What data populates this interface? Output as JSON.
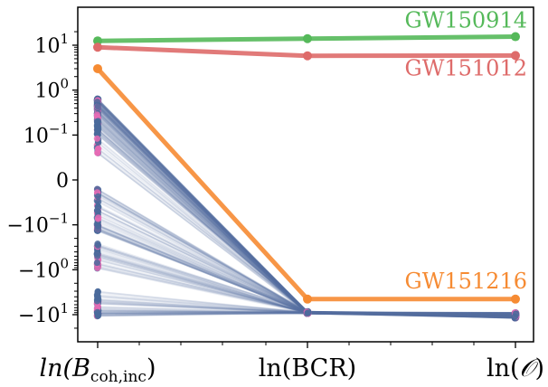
{
  "chart_data": {
    "type": "line",
    "x_categories": [
      "ln(B",
      "ln(BCR)",
      "ln("
    ],
    "x_label_parts": {
      "b_base": "ln(B",
      "b_sub": "coh,inc",
      "b_close": ")",
      "bcr": "ln(BCR)",
      "o_open": "ln(",
      "o_symbol": "𝒪",
      "o_close": ")"
    },
    "y_scale": "symlog",
    "y_ticks": [
      {
        "value": 10,
        "base": "10",
        "exp": "1"
      },
      {
        "value": 1,
        "base": "10",
        "exp": "0"
      },
      {
        "value": 0.1,
        "base": "10",
        "exp": "−1"
      },
      {
        "value": 0,
        "base": "0",
        "exp": ""
      },
      {
        "value": -0.1,
        "base": "−10",
        "exp": "−1"
      },
      {
        "value": -1,
        "base": "−10",
        "exp": "0"
      },
      {
        "value": -10,
        "base": "−10",
        "exp": "1"
      }
    ],
    "ylim": [
      -20,
      30
    ],
    "grid": false,
    "highlighted_series": [
      {
        "name": "GW150914",
        "color": "#55b95a",
        "values": [
          12.5,
          14.0,
          15.5
        ]
      },
      {
        "name": "GW151012",
        "color": "#de6b6a",
        "values": [
          9.0,
          5.8,
          5.9
        ]
      },
      {
        "name": "GW151216",
        "color": "#f68b33",
        "values": [
          3.0,
          -4.5,
          -4.5
        ]
      }
    ],
    "background_series": {
      "description_count": 300,
      "line_color": "#5b73a6",
      "marker_colors": [
        "#4a6a9b",
        "#e86bb5"
      ],
      "x1_range": [
        -9.5,
        -8.5
      ],
      "x2_range": [
        -12.0,
        -9.0
      ]
    }
  }
}
